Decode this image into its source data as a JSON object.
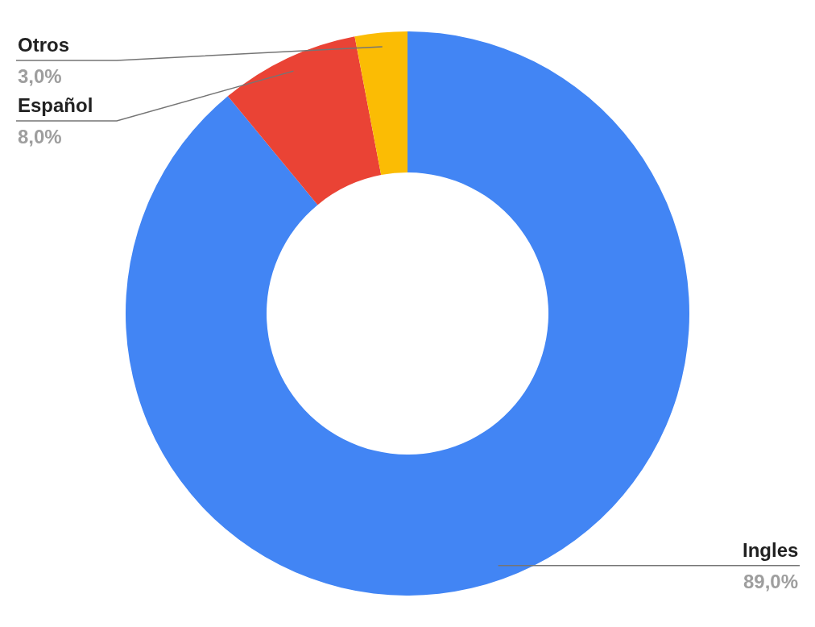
{
  "chart_data": {
    "type": "donut",
    "categories": [
      "Ingles",
      "Español",
      "Otros"
    ],
    "values": [
      89,
      8,
      3
    ],
    "colors": [
      "#4285f4",
      "#ea4335",
      "#fbbc04"
    ],
    "value_labels": [
      "89,0%",
      "8,0%",
      "3,0%"
    ],
    "legend": false
  }
}
